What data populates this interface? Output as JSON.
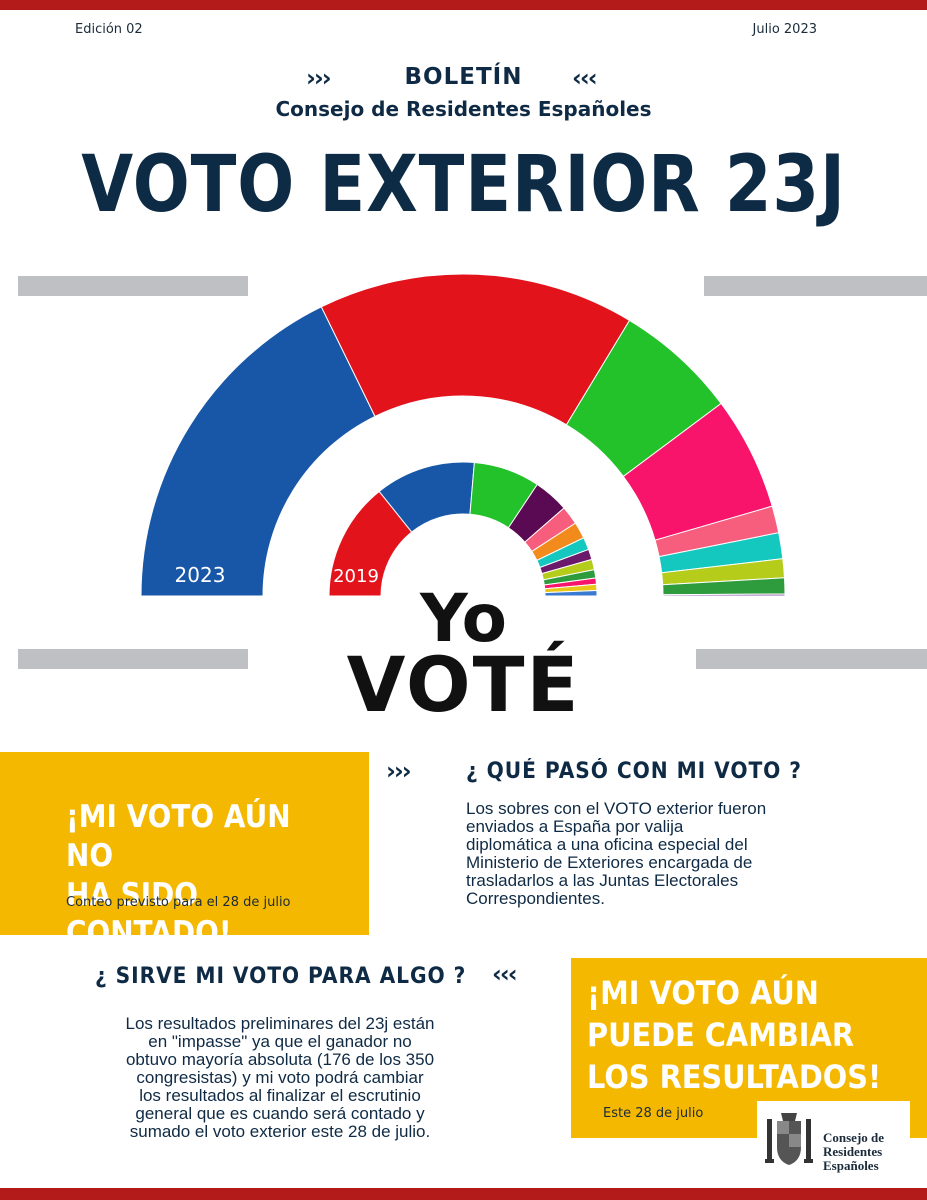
{
  "header": {
    "edition": "Edición 02",
    "date": "Julio 2023",
    "chevron_left": "›››",
    "chevron_right": "‹‹‹",
    "boletin": "BOLETÍN",
    "consejo": "Consejo de Residentes Españoles",
    "headline": "VOTO EXTERIOR 23J"
  },
  "chart_data": {
    "type": "pie",
    "title": "",
    "rings": [
      {
        "label": "2023",
        "slices": [
          {
            "value": 35.5,
            "color": "#1857a7"
          },
          {
            "value": 31.8,
            "color": "#e3131c"
          },
          {
            "value": 12.3,
            "color": "#23c22b"
          },
          {
            "value": 11.4,
            "color": "#f7146a"
          },
          {
            "value": 2.7,
            "color": "#f75d7d"
          },
          {
            "value": 2.6,
            "color": "#14c8c0"
          },
          {
            "value": 1.9,
            "color": "#b5cc1b"
          },
          {
            "value": 1.6,
            "color": "#2e9c3c"
          },
          {
            "value": 0.2,
            "color": "#8b5fa9"
          }
        ]
      },
      {
        "label": "2019",
        "slices": [
          {
            "value": 28.5,
            "color": "#e3131c"
          },
          {
            "value": 24.2,
            "color": "#1857a7"
          },
          {
            "value": 16.0,
            "color": "#23c22b"
          },
          {
            "value": 8.5,
            "color": "#5a0a52"
          },
          {
            "value": 4.5,
            "color": "#f75d7d"
          },
          {
            "value": 4.0,
            "color": "#f28a1c"
          },
          {
            "value": 3.0,
            "color": "#14c8c0"
          },
          {
            "value": 2.5,
            "color": "#6b1a6b"
          },
          {
            "value": 2.5,
            "color": "#b5cc1b"
          },
          {
            "value": 2.0,
            "color": "#2e9c3c"
          },
          {
            "value": 1.5,
            "color": "#f7146a"
          },
          {
            "value": 1.5,
            "color": "#e8c71a"
          },
          {
            "value": 1.3,
            "color": "#3a7ad0"
          }
        ]
      }
    ]
  },
  "yo_vote": {
    "yo": "Yo",
    "vote": "VOTÉ"
  },
  "box_contado": {
    "title_line1": "¡MI VOTO AÚN NO",
    "title_line2": "HA SIDO CONTADO!",
    "sub": "Conteo previsto para el 28 de julio"
  },
  "section_que_paso": {
    "chevron": "›››",
    "title": "¿ QUÉ PASÓ CON MI VOTO ?",
    "lines": [
      "Los sobres con el VOTO exterior fueron",
      "enviados a España por valija",
      "diplomática a una oficina especial del",
      "Ministerio de Exteriores encargada de",
      "trasladarlos a las Juntas Electorales",
      "Correspondientes."
    ]
  },
  "section_sirve": {
    "chevron": "‹‹‹",
    "title": "¿ SIRVE MI VOTO PARA ALGO ?",
    "lines": [
      "Los resultados preliminares del 23j están",
      "en \"impasse\" ya que el ganador no",
      "obtuvo mayoría absoluta (176 de los 350",
      "congresistas) y mi voto podrá cambiar",
      "los resultados al finalizar el escrutinio",
      "general que es cuando será contado y",
      "sumado el voto exterior este 28 de julio."
    ]
  },
  "box_cambiar": {
    "title_line1": "¡MI VOTO AÚN",
    "title_line2": "PUEDE CAMBIAR",
    "title_line3": "LOS RESULTADOS!",
    "sub": "Este 28 de julio"
  },
  "logo": {
    "line1": "Consejo de",
    "line2": "Residentes",
    "line3": "Españoles"
  },
  "colors": {
    "accent_red": "#b31b1b",
    "navy": "#0f2a44",
    "yellow": "#f5b800",
    "gray_bar": "#bfc0c4"
  }
}
